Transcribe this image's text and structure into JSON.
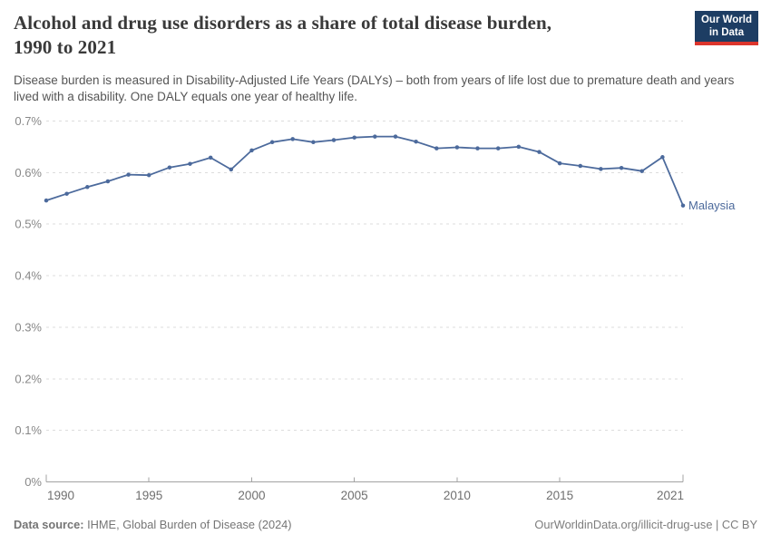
{
  "header": {
    "title_line1": "Alcohol and drug use disorders as a share of total disease burden,",
    "title_line2": "1990 to 2021",
    "subtitle": "Disease burden is measured in Disability-Adjusted Life Years (DALYs) – both from years of life lost due to premature death and years lived with a disability. One DALY equals one year of healthy life.",
    "logo": {
      "line1": "Our World",
      "line2": "in Data",
      "bg_color": "#1d3d63",
      "bar_color": "#dc352c"
    }
  },
  "chart_data": {
    "type": "line",
    "title": "Alcohol and drug use disorders as a share of total disease burden, 1990 to 2021",
    "x": [
      1990,
      1991,
      1992,
      1993,
      1994,
      1995,
      1996,
      1997,
      1998,
      1999,
      2000,
      2001,
      2002,
      2003,
      2004,
      2005,
      2006,
      2007,
      2008,
      2009,
      2010,
      2011,
      2012,
      2013,
      2014,
      2015,
      2016,
      2017,
      2018,
      2019,
      2020,
      2021
    ],
    "series": [
      {
        "name": "Malaysia",
        "color": "#4c6a9c",
        "values": [
          0.546,
          0.559,
          0.572,
          0.583,
          0.596,
          0.595,
          0.61,
          0.617,
          0.629,
          0.606,
          0.643,
          0.659,
          0.665,
          0.659,
          0.663,
          0.668,
          0.67,
          0.67,
          0.66,
          0.647,
          0.649,
          0.647,
          0.647,
          0.65,
          0.64,
          0.618,
          0.613,
          0.607,
          0.609,
          0.603,
          0.63,
          0.536
        ]
      }
    ],
    "unit": "%",
    "ylim": [
      0,
      0.7
    ],
    "yticks": [
      {
        "value": 0,
        "label": "0%"
      },
      {
        "value": 0.1,
        "label": "0.1%"
      },
      {
        "value": 0.2,
        "label": "0.2%"
      },
      {
        "value": 0.3,
        "label": "0.3%"
      },
      {
        "value": 0.4,
        "label": "0.4%"
      },
      {
        "value": 0.5,
        "label": "0.5%"
      },
      {
        "value": 0.6,
        "label": "0.6%"
      },
      {
        "value": 0.7,
        "label": "0.7%"
      }
    ],
    "xticks": [
      {
        "value": 1990,
        "label": "1990"
      },
      {
        "value": 1995,
        "label": "1995"
      },
      {
        "value": 2000,
        "label": "2000"
      },
      {
        "value": 2005,
        "label": "2005"
      },
      {
        "value": 2010,
        "label": "2010"
      },
      {
        "value": 2015,
        "label": "2015"
      },
      {
        "value": 2021,
        "label": "2021"
      }
    ],
    "grid": "horizontal-dashed",
    "legend_position": "end-of-line-label",
    "style": {
      "grid_color": "#dddddd",
      "axis_color": "#a3a3a3",
      "ytick_label_color": "#888888",
      "xtick_label_color": "#6f6f6f"
    }
  },
  "footer": {
    "source_label": "Data source:",
    "source_text": " IHME, Global Burden of Disease (2024)",
    "right_text": "OurWorldinData.org/illicit-drug-use | CC BY"
  }
}
